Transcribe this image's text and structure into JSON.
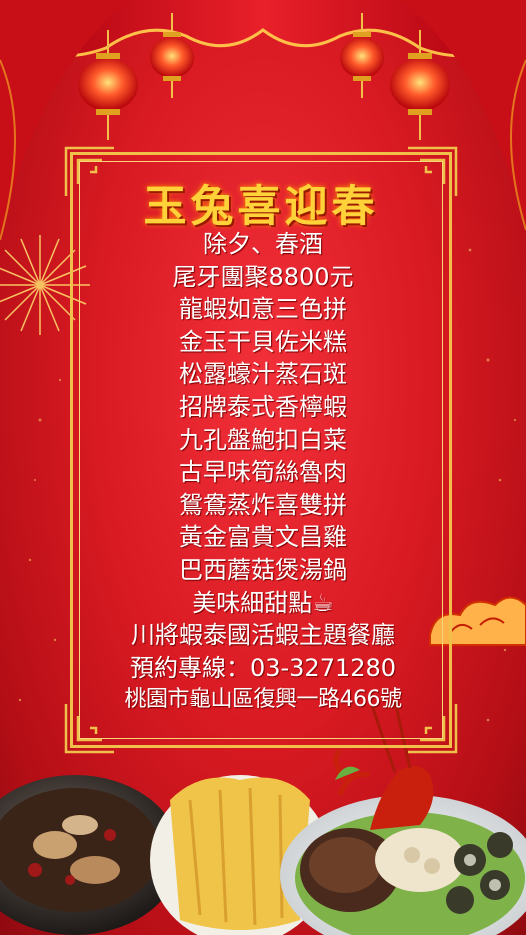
{
  "poster": {
    "title": "玉兔喜迎春",
    "lines": [
      "除夕、春酒",
      "尾牙團聚8800元",
      "龍蝦如意三色拼",
      "金玉干貝佐米糕",
      "松露蠔汁蒸石斑",
      "招牌泰式香檸蝦",
      "九孔盤鮑扣白菜",
      "古早味筍絲魯肉",
      "鴛鴦蒸炸喜雙拼",
      "黃金富貴文昌雞",
      "巴西蘑菇煲湯鍋",
      "美味細甜點☕",
      "川將蝦泰國活蝦主題餐廳",
      "預約專線：03-3271280",
      "桃園市龜山區復興一路466號"
    ]
  },
  "colors": {
    "background": "#d91a22",
    "gold": "#f1c04a",
    "title": "#ffd23a",
    "text": "#ffffff"
  },
  "decorations": [
    "curtain",
    "lantern",
    "firework",
    "lucky-cloud",
    "food-dishes"
  ]
}
